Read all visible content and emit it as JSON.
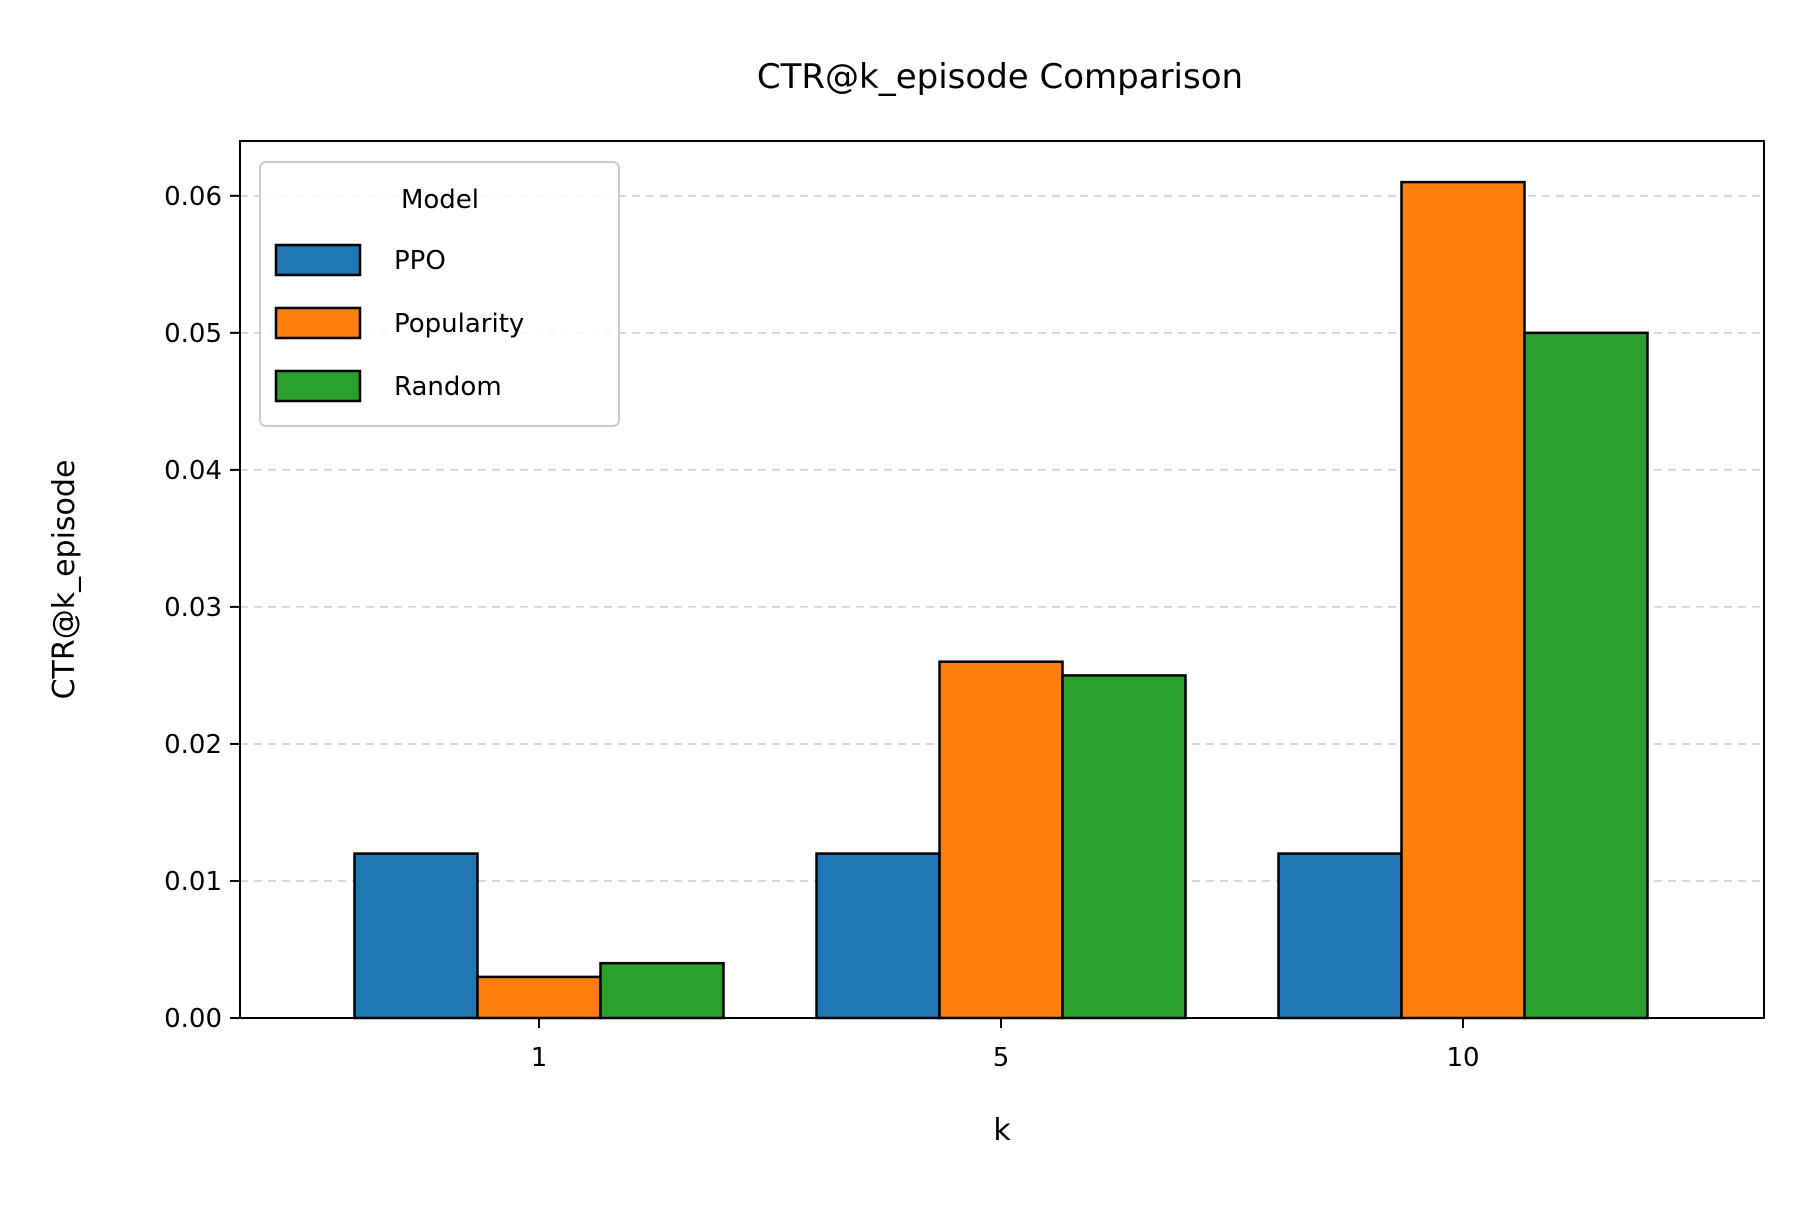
{
  "chart_data": {
    "type": "bar",
    "title": "CTR@k_episode Comparison",
    "xlabel": "k",
    "ylabel": "CTR@k_episode",
    "categories": [
      "1",
      "5",
      "10"
    ],
    "series": [
      {
        "name": "PPO",
        "values": [
          0.012,
          0.012,
          0.012
        ],
        "color": "#1f77b4"
      },
      {
        "name": "Popularity",
        "values": [
          0.003,
          0.026,
          0.061
        ],
        "color": "#ff7f0e"
      },
      {
        "name": "Random",
        "values": [
          0.004,
          0.025,
          0.05
        ],
        "color": "#2ca02c"
      }
    ],
    "ylim": [
      0,
      0.064
    ],
    "yticks": [
      "0.00",
      "0.01",
      "0.02",
      "0.03",
      "0.04",
      "0.05",
      "0.06"
    ],
    "ytick_values": [
      0,
      0.01,
      0.02,
      0.03,
      0.04,
      0.05,
      0.06
    ],
    "legend": {
      "title": "Model",
      "placement": "top-left"
    },
    "grid": {
      "y": true,
      "style": "dashed"
    }
  }
}
